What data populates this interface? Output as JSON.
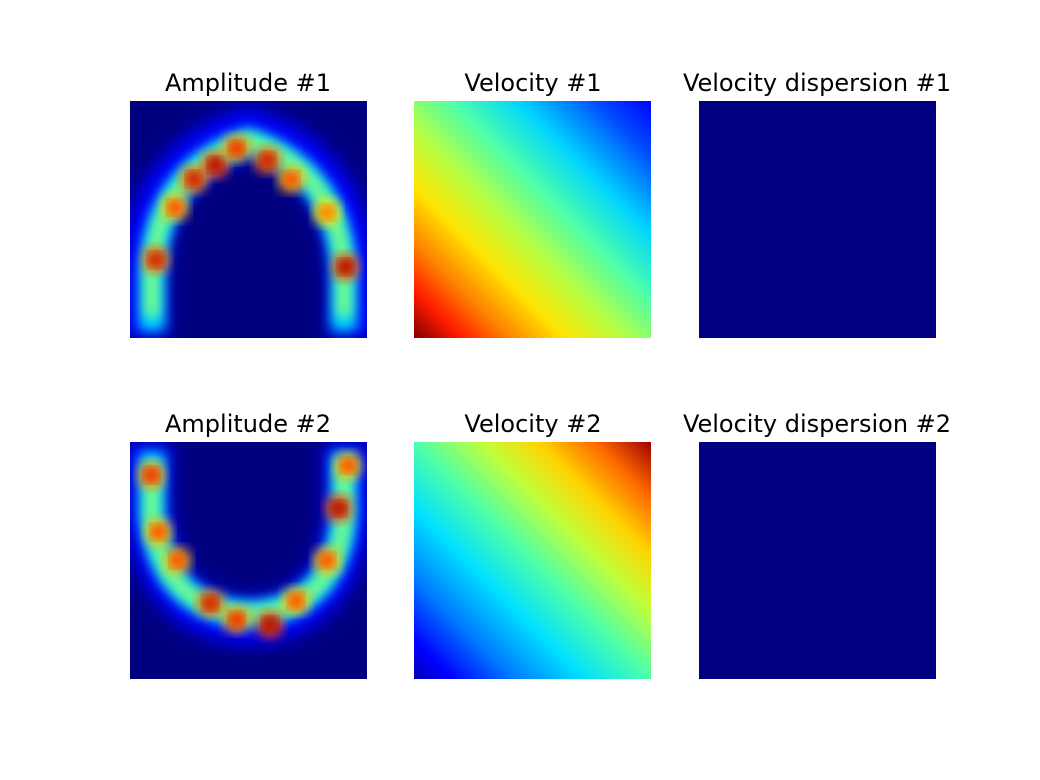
{
  "colors": {
    "background": "#ffffff",
    "jet_min": "#00007f",
    "jet_max": "#7f0000",
    "dispersion_fill": "#000080"
  },
  "chart_data": [
    {
      "type": "heatmap",
      "title": "Amplitude #1",
      "colormap": "jet",
      "axes_visible": false,
      "pattern": "arc-opening-down",
      "arc": {
        "center": [
          0.5,
          0.85
        ],
        "radii": [
          0.37,
          0.61
        ],
        "extent": "upper-half"
      },
      "hotspots": [
        {
          "x": 0.11,
          "y": 0.67,
          "v": 0.95
        },
        {
          "x": 0.19,
          "y": 0.45,
          "v": 0.85
        },
        {
          "x": 0.27,
          "y": 0.33,
          "v": 0.95
        },
        {
          "x": 0.36,
          "y": 0.27,
          "v": 1.0
        },
        {
          "x": 0.45,
          "y": 0.2,
          "v": 0.9
        },
        {
          "x": 0.58,
          "y": 0.25,
          "v": 0.95
        },
        {
          "x": 0.68,
          "y": 0.33,
          "v": 0.85
        },
        {
          "x": 0.83,
          "y": 0.47,
          "v": 0.8
        },
        {
          "x": 0.91,
          "y": 0.7,
          "v": 1.0
        }
      ]
    },
    {
      "type": "heatmap",
      "title": "Velocity #1",
      "colormap": "jet",
      "axes_visible": false,
      "pattern": "linear-gradient",
      "gradient": {
        "low": "top-right",
        "high": "bottom-left"
      }
    },
    {
      "type": "heatmap",
      "title": "Velocity dispersion #1",
      "colormap": "jet",
      "axes_visible": false,
      "pattern": "uniform",
      "value": 0
    },
    {
      "type": "heatmap",
      "title": "Amplitude #2",
      "colormap": "jet",
      "axes_visible": false,
      "pattern": "arc-opening-up",
      "arc": {
        "center": [
          0.5,
          0.12
        ],
        "radii": [
          0.37,
          0.61
        ],
        "extent": "lower-half"
      },
      "hotspots": [
        {
          "x": 0.09,
          "y": 0.14,
          "v": 0.9
        },
        {
          "x": 0.12,
          "y": 0.38,
          "v": 0.85
        },
        {
          "x": 0.2,
          "y": 0.5,
          "v": 0.85
        },
        {
          "x": 0.34,
          "y": 0.68,
          "v": 0.95
        },
        {
          "x": 0.45,
          "y": 0.75,
          "v": 0.9
        },
        {
          "x": 0.59,
          "y": 0.77,
          "v": 1.0
        },
        {
          "x": 0.7,
          "y": 0.67,
          "v": 0.85
        },
        {
          "x": 0.83,
          "y": 0.5,
          "v": 0.85
        },
        {
          "x": 0.88,
          "y": 0.28,
          "v": 1.0
        },
        {
          "x": 0.92,
          "y": 0.1,
          "v": 0.85
        }
      ]
    },
    {
      "type": "heatmap",
      "title": "Velocity #2",
      "colormap": "jet",
      "axes_visible": false,
      "pattern": "linear-gradient",
      "gradient": {
        "low": "bottom-left",
        "high": "top-right"
      }
    },
    {
      "type": "heatmap",
      "title": "Velocity dispersion #2",
      "colormap": "jet",
      "axes_visible": false,
      "pattern": "uniform",
      "value": 0
    }
  ]
}
